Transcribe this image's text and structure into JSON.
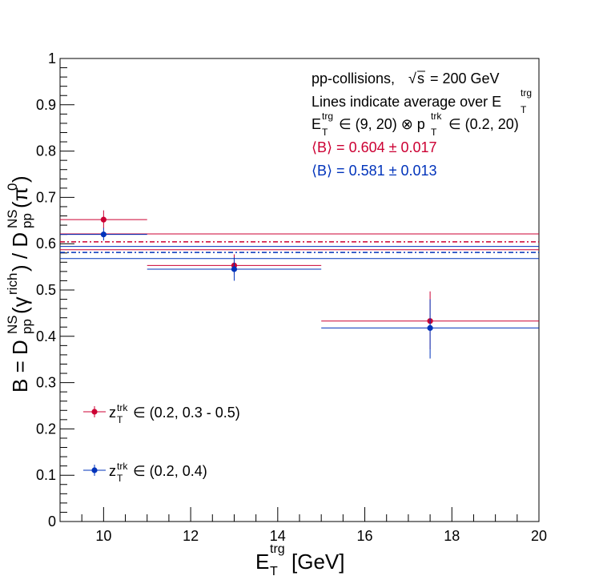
{
  "chart_data": {
    "type": "scatter",
    "x_range": [
      9,
      20
    ],
    "y_range": [
      0,
      1
    ],
    "grid": false,
    "x_ticks": [
      "10",
      "12",
      "14",
      "16",
      "18",
      "20"
    ],
    "y_ticks": [
      "0",
      "0.1",
      "0.2",
      "0.3",
      "0.4",
      "0.5",
      "0.6",
      "0.7",
      "0.8",
      "0.9",
      "1"
    ],
    "xlabel": {
      "main": "E",
      "sup": "trg",
      "sub": "T",
      "unit": "[GeV]"
    },
    "ylabel": {
      "t1": "B = D",
      "t1sup": "NS",
      "t1sub": "pp",
      "t2": "(γ",
      "t2sup": "rich",
      "t3": ") / D",
      "t3sup": "NS",
      "t3sub": "pp",
      "t4": "(π",
      "t4sup": "0",
      "t5": ")"
    },
    "annotations": {
      "line1": "pp-collisions,",
      "sqrt_s": "s",
      "line1_rest": "= 200 GeV",
      "line2": "Lines indicate average over E",
      "trg": "trg",
      "T": "T",
      "trk": "trk",
      "line3_a": "E",
      "line3_b": "∈ (9, 20) ⊗ p",
      "line3_c": "∈ (0.2, 20)",
      "avg1": "⟨B⟩ = 0.604 ± 0.017",
      "avg2": "⟨B⟩ = 0.581 ± 0.013"
    },
    "series": [
      {
        "legend_main": "z",
        "legend_sup": "trk",
        "legend_sub": "T",
        "legend_rest": "∈ (0.2, 0.3 - 0.5)",
        "color": "#cc0033",
        "points": [
          {
            "x": 10,
            "xlo": 9,
            "xhi": 11,
            "y": 0.652,
            "ylo": 0.633,
            "yhi": 0.672
          },
          {
            "x": 13,
            "xlo": 11,
            "xhi": 15,
            "y": 0.553,
            "ylo": 0.533,
            "yhi": 0.577
          },
          {
            "x": 17.5,
            "xlo": 15,
            "xhi": 20,
            "y": 0.433,
            "ylo": 0.372,
            "yhi": 0.497
          }
        ],
        "avg": 0.604,
        "avg_err": 0.017
      },
      {
        "legend_main": "z",
        "legend_sup": "trk",
        "legend_sub": "T",
        "legend_rest": "∈ (0.2, 0.4)",
        "color": "#0033bb",
        "points": [
          {
            "x": 10,
            "xlo": 9,
            "xhi": 11,
            "y": 0.62,
            "ylo": 0.607,
            "yhi": 0.634
          },
          {
            "x": 13,
            "xlo": 11,
            "xhi": 15,
            "y": 0.545,
            "ylo": 0.52,
            "yhi": 0.57
          },
          {
            "x": 17.5,
            "xlo": 15,
            "xhi": 20,
            "y": 0.418,
            "ylo": 0.352,
            "yhi": 0.48
          }
        ],
        "avg": 0.581,
        "avg_err": 0.013
      }
    ]
  }
}
